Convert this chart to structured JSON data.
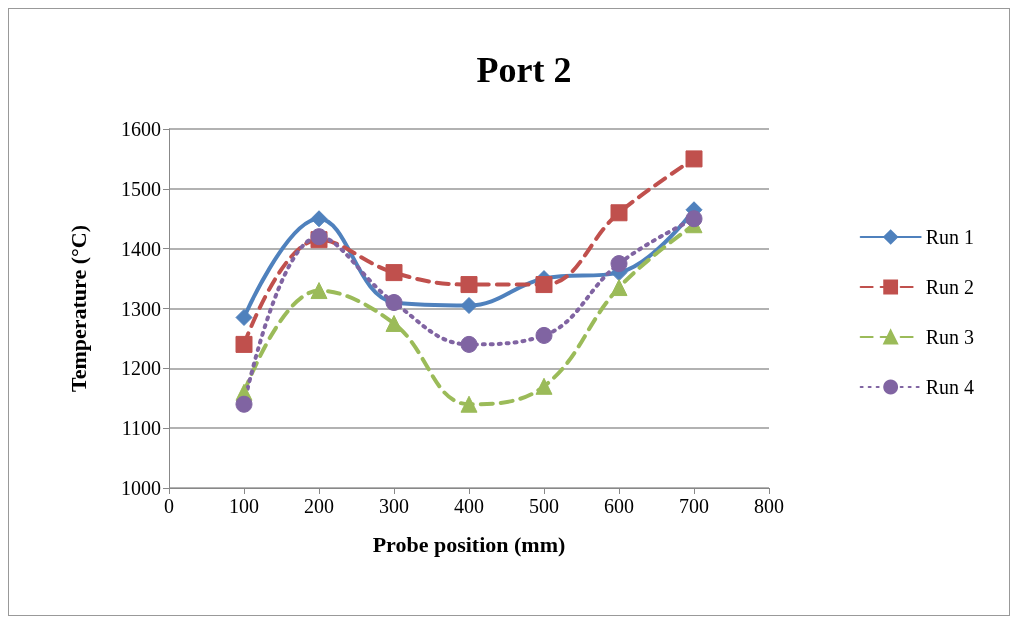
{
  "chart_data": {
    "type": "line",
    "title": "Port 2",
    "xlabel": "Probe position (mm)",
    "ylabel": "Temperature (°C)",
    "x": [
      100,
      200,
      300,
      400,
      500,
      600,
      700
    ],
    "series": [
      {
        "name": "Run 1",
        "color": "#4f81bd",
        "marker": "diamond",
        "line_style": "solid",
        "values": [
          1285,
          1450,
          1310,
          1305,
          1350,
          1360,
          1465
        ]
      },
      {
        "name": "Run 2",
        "color": "#c0504d",
        "marker": "square",
        "line_style": "dashed",
        "values": [
          1240,
          1415,
          1360,
          1340,
          1340,
          1460,
          1550
        ]
      },
      {
        "name": "Run 3",
        "color": "#9bbb59",
        "marker": "triangle",
        "line_style": "dashed",
        "values": [
          1160,
          1330,
          1275,
          1140,
          1170,
          1335,
          1440
        ]
      },
      {
        "name": "Run 4",
        "color": "#8064a2",
        "marker": "circle",
        "line_style": "dotted",
        "values": [
          1140,
          1420,
          1310,
          1240,
          1255,
          1375,
          1450
        ]
      }
    ],
    "xlim": [
      0,
      800
    ],
    "xticks": [
      0,
      100,
      200,
      300,
      400,
      500,
      600,
      700,
      800
    ],
    "ylim": [
      1000,
      1600
    ],
    "yticks": [
      1000,
      1100,
      1200,
      1300,
      1400,
      1500,
      1600
    ],
    "grid": "y",
    "legend": "right"
  }
}
